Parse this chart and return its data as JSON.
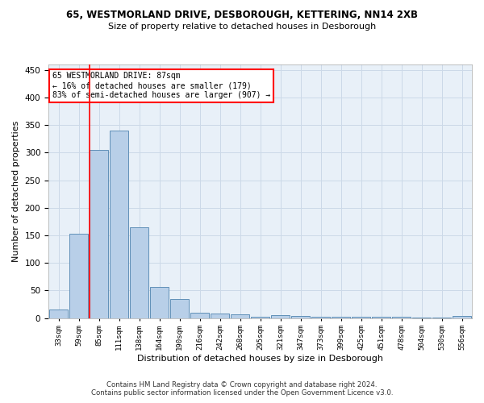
{
  "title1": "65, WESTMORLAND DRIVE, DESBOROUGH, KETTERING, NN14 2XB",
  "title2": "Size of property relative to detached houses in Desborough",
  "xlabel": "Distribution of detached houses by size in Desborough",
  "ylabel": "Number of detached properties",
  "footer1": "Contains HM Land Registry data © Crown copyright and database right 2024.",
  "footer2": "Contains public sector information licensed under the Open Government Licence v3.0.",
  "annotation_line1": "65 WESTMORLAND DRIVE: 87sqm",
  "annotation_line2": "← 16% of detached houses are smaller (179)",
  "annotation_line3": "83% of semi-detached houses are larger (907) →",
  "bar_values": [
    15,
    153,
    305,
    340,
    165,
    57,
    35,
    10,
    8,
    6,
    2,
    5,
    4,
    3,
    3,
    2,
    2,
    2,
    1,
    1,
    4
  ],
  "bin_labels": [
    "33sqm",
    "59sqm",
    "85sqm",
    "111sqm",
    "138sqm",
    "164sqm",
    "190sqm",
    "216sqm",
    "242sqm",
    "268sqm",
    "295sqm",
    "321sqm",
    "347sqm",
    "373sqm",
    "399sqm",
    "425sqm",
    "451sqm",
    "478sqm",
    "504sqm",
    "530sqm",
    "556sqm"
  ],
  "bar_color": "#b8cfe8",
  "bar_edge_color": "#6090b8",
  "vline_color": "red",
  "grid_color": "#ccd9e8",
  "background_color": "#e8f0f8",
  "annotation_box_color": "white",
  "annotation_box_edge": "red",
  "ylim": [
    0,
    460
  ],
  "yticks": [
    0,
    50,
    100,
    150,
    200,
    250,
    300,
    350,
    400,
    450
  ]
}
